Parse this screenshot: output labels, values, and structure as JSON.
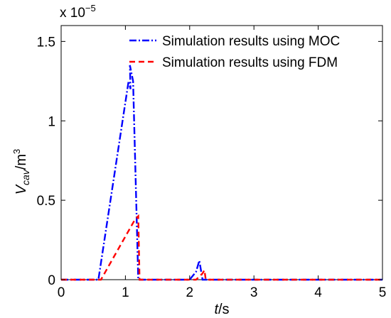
{
  "chart_data": {
    "type": "line",
    "multiplier_base": "x 10",
    "multiplier_exp": "−5",
    "xlabel_var": "t",
    "xlabel_unit": "/s",
    "ylabel_main": "V",
    "ylabel_sub": "cav",
    "ylabel_unit": "/m",
    "ylabel_exp": "3",
    "xlim": [
      0,
      5
    ],
    "ylim": [
      0,
      1.6
    ],
    "x_ticks": [
      0,
      1,
      2,
      3,
      4,
      5
    ],
    "x_tick_labels": [
      "0",
      "1",
      "2",
      "3",
      "4",
      "5"
    ],
    "y_ticks": [
      0,
      0.5,
      1,
      1.5
    ],
    "y_tick_labels": [
      "0",
      "0.5",
      "1",
      "1.5"
    ],
    "grid": false,
    "legend_position": "top-right",
    "series": [
      {
        "name": "Simulation results using MOC",
        "color": "#0000ff",
        "dash": "dash-dot",
        "x": [
          0,
          0.58,
          1.05,
          1.08,
          1.07,
          1.12,
          1.2,
          1.22,
          2.0,
          2.1,
          2.15,
          2.2,
          5
        ],
        "y": [
          0,
          0,
          1.25,
          1.2,
          1.35,
          1.25,
          0,
          0,
          0,
          0.05,
          0.12,
          0,
          0
        ]
      },
      {
        "name": "Simulation results using FDM",
        "color": "#ff0000",
        "dash": "dashed",
        "x": [
          0,
          0.62,
          1.15,
          1.2,
          1.22,
          1.28,
          2.1,
          2.15,
          2.2,
          2.23,
          2.25,
          5
        ],
        "y": [
          0,
          0,
          0.38,
          0.4,
          0,
          0,
          0,
          0.02,
          0.04,
          0.06,
          0,
          0
        ]
      }
    ]
  }
}
